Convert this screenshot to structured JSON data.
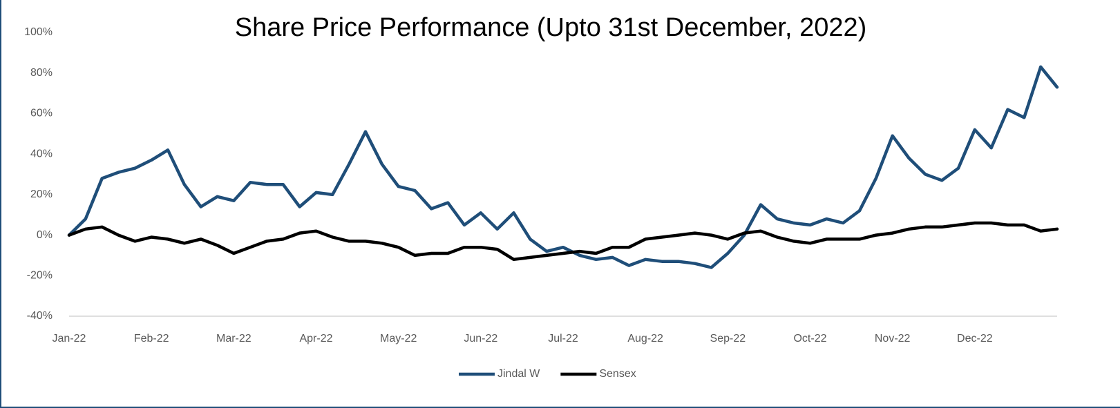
{
  "chart_data": {
    "type": "line",
    "title": "Share Price Performance (Upto 31st December, 2022)",
    "categories": [
      "Jan-22",
      null,
      null,
      null,
      null,
      "Feb-22",
      null,
      null,
      null,
      null,
      "Mar-22",
      null,
      null,
      null,
      null,
      "Apr-22",
      null,
      null,
      null,
      null,
      "May-22",
      null,
      null,
      null,
      null,
      "Jun-22",
      null,
      null,
      null,
      null,
      "Jul-22",
      null,
      null,
      null,
      null,
      "Aug-22",
      null,
      null,
      null,
      null,
      "Sep-22",
      null,
      null,
      null,
      null,
      "Oct-22",
      null,
      null,
      null,
      null,
      "Nov-22",
      null,
      null,
      null,
      null,
      "Dec-22",
      null,
      null,
      null,
      null,
      null
    ],
    "series": [
      {
        "name": "Jindal W",
        "color": "#1f4e79",
        "values": [
          0,
          8,
          28,
          31,
          33,
          37,
          42,
          25,
          14,
          19,
          17,
          26,
          25,
          25,
          14,
          21,
          20,
          35,
          51,
          35,
          24,
          22,
          13,
          16,
          5,
          11,
          3,
          11,
          -2,
          -8,
          -6,
          -10,
          -12,
          -11,
          -15,
          -12,
          -13,
          -13,
          -14,
          -16,
          -9,
          0,
          15,
          8,
          6,
          5,
          8,
          6,
          12,
          28,
          49,
          38,
          30,
          27,
          33,
          52,
          43,
          62,
          58,
          83,
          73
        ]
      },
      {
        "name": "Sensex",
        "color": "#000000",
        "values": [
          0,
          3,
          4,
          0,
          -3,
          -1,
          -2,
          -4,
          -2,
          -5,
          -9,
          -6,
          -3,
          -2,
          1,
          2,
          -1,
          -3,
          -3,
          -4,
          -6,
          -10,
          -9,
          -9,
          -6,
          -6,
          -7,
          -12,
          -11,
          -10,
          -9,
          -8,
          -9,
          -6,
          -6,
          -2,
          -1,
          0,
          1,
          0,
          -2,
          1,
          2,
          -1,
          -3,
          -4,
          -2,
          -2,
          -2,
          0,
          1,
          3,
          4,
          4,
          5,
          6,
          6,
          5,
          5,
          2,
          3
        ]
      }
    ],
    "ylim": [
      -40,
      100
    ],
    "yticks": [
      {
        "value": -40,
        "label": "-40%"
      },
      {
        "value": -20,
        "label": "-20%"
      },
      {
        "value": 0,
        "label": "0%"
      },
      {
        "value": 20,
        "label": "20%"
      },
      {
        "value": 40,
        "label": "40%"
      },
      {
        "value": 60,
        "label": "60%"
      },
      {
        "value": 80,
        "label": "80%"
      },
      {
        "value": 100,
        "label": "100%"
      }
    ],
    "grid": false,
    "legend": "bottom"
  }
}
